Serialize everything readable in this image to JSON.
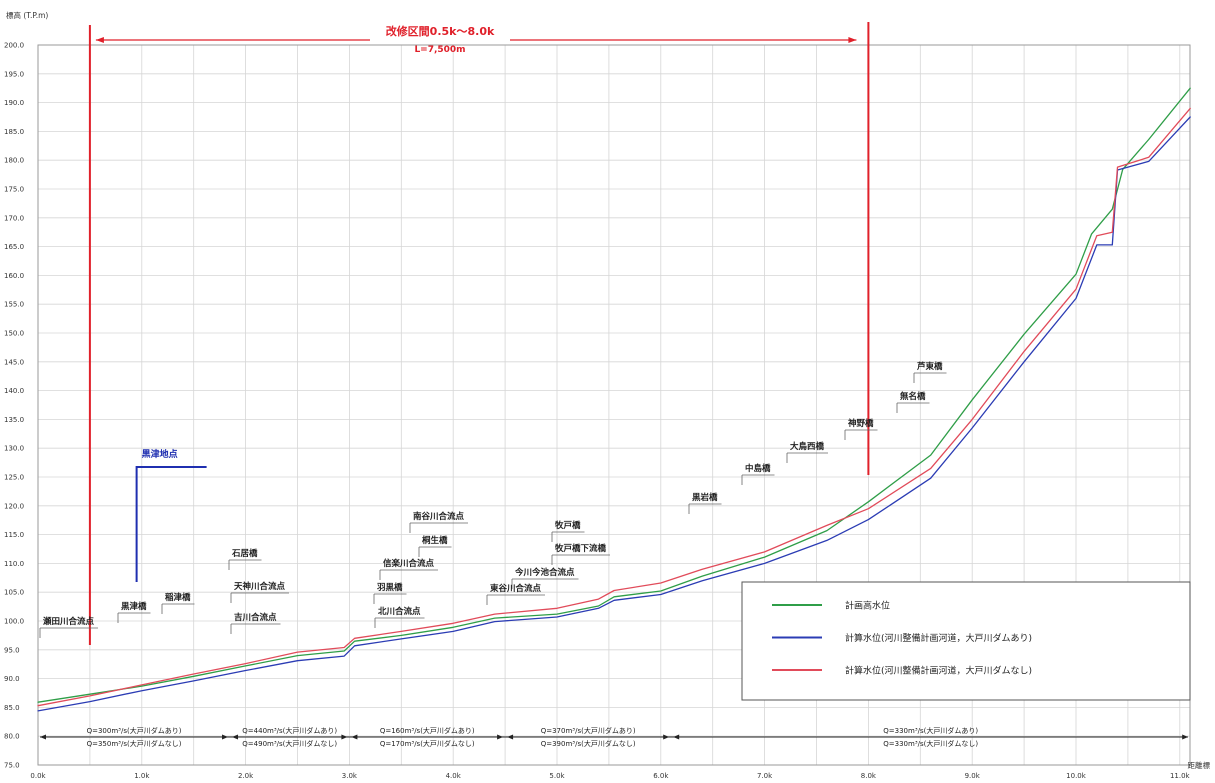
{
  "chart_data": {
    "type": "line",
    "ylabel": "標高 (T.P.m)",
    "xlabel": "距離標",
    "xlim": [
      0,
      11.1
    ],
    "ylim": [
      75,
      200
    ],
    "grid": true,
    "legend_position": "bottom-right",
    "x_tick_values": [
      0,
      1,
      2,
      3,
      4,
      5,
      6,
      7,
      8,
      9,
      10,
      11
    ],
    "x_ticks": [
      "0.0k",
      "1.0k",
      "2.0k",
      "3.0k",
      "4.0k",
      "5.0k",
      "6.0k",
      "7.0k",
      "8.0k",
      "9.0k",
      "10.0k",
      "11.0k"
    ],
    "y_tick_values": [
      75,
      80,
      85,
      90,
      95,
      100,
      105,
      110,
      115,
      120,
      125,
      130,
      135,
      140,
      145,
      150,
      155,
      160,
      165,
      170,
      175,
      180,
      185,
      190,
      195,
      200
    ],
    "y_ticks": [
      "75.0",
      "80.0",
      "85.0",
      "90.0",
      "95.0",
      "100.0",
      "105.0",
      "110.0",
      "115.0",
      "120.0",
      "125.0",
      "130.0",
      "135.0",
      "140.0",
      "145.0",
      "150.0",
      "155.0",
      "160.0",
      "165.0",
      "170.0",
      "175.0",
      "180.0",
      "185.0",
      "190.0",
      "195.0",
      "200.0"
    ],
    "series": [
      {
        "name": "計画高水位",
        "color": "#2f9e48",
        "points": [
          [
            0.0,
            85.9
          ],
          [
            0.5,
            87.3
          ],
          [
            1.0,
            88.7
          ],
          [
            1.5,
            90.4
          ],
          [
            2.0,
            92.2
          ],
          [
            2.5,
            94.0
          ],
          [
            2.95,
            94.8
          ],
          [
            3.05,
            96.5
          ],
          [
            3.5,
            97.5
          ],
          [
            4.0,
            98.9
          ],
          [
            4.4,
            100.5
          ],
          [
            5.0,
            101.2
          ],
          [
            5.4,
            102.6
          ],
          [
            5.55,
            104.2
          ],
          [
            6.0,
            105.2
          ],
          [
            6.4,
            107.8
          ],
          [
            7.0,
            111.1
          ],
          [
            7.6,
            115.7
          ],
          [
            8.0,
            120.7
          ],
          [
            8.6,
            128.8
          ],
          [
            9.0,
            138.4
          ],
          [
            9.5,
            149.8
          ],
          [
            10.0,
            160.2
          ],
          [
            10.15,
            167.2
          ],
          [
            10.35,
            171.5
          ],
          [
            10.45,
            178.4
          ],
          [
            10.7,
            183.6
          ],
          [
            11.1,
            192.5
          ]
        ]
      },
      {
        "name": "計算水位(河川整備計画河道，大戸川ダムあり)",
        "color": "#2b3cb4",
        "points": [
          [
            0.0,
            84.4
          ],
          [
            0.5,
            86.0
          ],
          [
            1.0,
            87.9
          ],
          [
            1.5,
            89.6
          ],
          [
            2.0,
            91.4
          ],
          [
            2.5,
            93.1
          ],
          [
            2.95,
            93.9
          ],
          [
            3.05,
            95.7
          ],
          [
            3.5,
            96.9
          ],
          [
            4.0,
            98.2
          ],
          [
            4.4,
            99.9
          ],
          [
            5.0,
            100.7
          ],
          [
            5.4,
            102.2
          ],
          [
            5.55,
            103.6
          ],
          [
            6.0,
            104.6
          ],
          [
            6.4,
            107.0
          ],
          [
            7.0,
            110.0
          ],
          [
            7.6,
            114.0
          ],
          [
            8.0,
            117.6
          ],
          [
            8.6,
            124.8
          ],
          [
            9.0,
            133.5
          ],
          [
            9.5,
            145.0
          ],
          [
            10.0,
            156.0
          ],
          [
            10.2,
            165.3
          ],
          [
            10.35,
            165.3
          ],
          [
            10.4,
            178.3
          ],
          [
            10.7,
            179.8
          ],
          [
            11.1,
            187.5
          ]
        ]
      },
      {
        "name": "計算水位(河川整備計画河道，大戸川ダムなし)",
        "color": "#e14b5a",
        "points": [
          [
            0.0,
            85.3
          ],
          [
            0.5,
            87.0
          ],
          [
            1.0,
            88.9
          ],
          [
            1.5,
            90.8
          ],
          [
            2.0,
            92.6
          ],
          [
            2.5,
            94.6
          ],
          [
            2.95,
            95.4
          ],
          [
            3.05,
            97.0
          ],
          [
            3.5,
            98.2
          ],
          [
            4.0,
            99.6
          ],
          [
            4.4,
            101.2
          ],
          [
            5.0,
            102.2
          ],
          [
            5.4,
            103.8
          ],
          [
            5.55,
            105.3
          ],
          [
            6.0,
            106.6
          ],
          [
            6.4,
            109.0
          ],
          [
            7.0,
            112.0
          ],
          [
            7.6,
            116.6
          ],
          [
            8.0,
            119.5
          ],
          [
            8.6,
            126.5
          ],
          [
            9.0,
            135.0
          ],
          [
            9.5,
            146.8
          ],
          [
            10.0,
            157.6
          ],
          [
            10.2,
            166.9
          ],
          [
            10.35,
            167.5
          ],
          [
            10.4,
            178.8
          ],
          [
            10.7,
            180.5
          ],
          [
            11.1,
            189.0
          ]
        ]
      }
    ],
    "improvement_section": {
      "start_km": 0.5,
      "end_km": 8.0,
      "label": "改修区間0.5k～8.0k",
      "length_label": "L=7,500m",
      "color": "#e0202a"
    },
    "reference_point": {
      "label": "黒津地点",
      "km": 0.95,
      "color": "#1f2fb0"
    },
    "landmarks": [
      "瀬田川合流点",
      "黒津橋",
      "稲津橋",
      "石居橋",
      "天神川合流点",
      "吉川合流点",
      "南谷川合流点",
      "桐生橋",
      "信楽川合流点",
      "羽黒橋",
      "北川合流点",
      "牧戸橋",
      "牧戸橋下流橋",
      "今川今池合流点",
      "東谷川合流点",
      "黒岩橋",
      "中島橋",
      "大鳥西橋",
      "神野橋",
      "無名橋",
      "芦東橋"
    ],
    "discharge_segments": [
      {
        "start_km": 0.0,
        "end_km": 1.85,
        "with_dam": "Q=300m³/s(大戸川ダムあり)",
        "without_dam": "Q=350m³/s(大戸川ダムなし)"
      },
      {
        "start_km": 1.85,
        "end_km": 3.0,
        "with_dam": "Q=440m³/s(大戸川ダムあり)",
        "without_dam": "Q=490m³/s(大戸川ダムなし)"
      },
      {
        "start_km": 3.0,
        "end_km": 4.5,
        "with_dam": "Q=160m³/s(大戸川ダムあり)",
        "without_dam": "Q=170m³/s(大戸川ダムなし)"
      },
      {
        "start_km": 4.5,
        "end_km": 6.1,
        "with_dam": "Q=370m³/s(大戸川ダムあり)",
        "without_dam": "Q=390m³/s(大戸川ダムなし)"
      },
      {
        "start_km": 6.1,
        "end_km": 11.1,
        "with_dam": "Q=330m³/s(大戸川ダムあり)",
        "without_dam": "Q=330m³/s(大戸川ダムなし)"
      }
    ]
  }
}
